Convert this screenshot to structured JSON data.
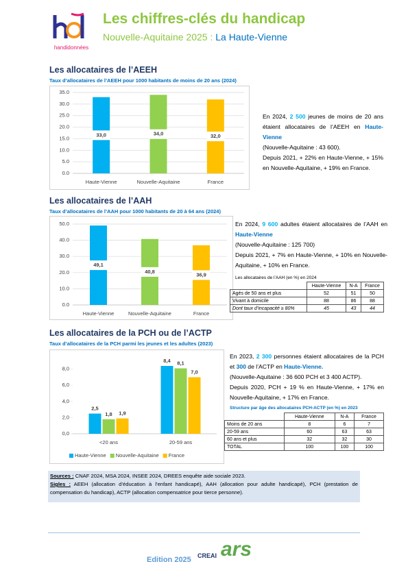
{
  "header": {
    "logo_text": "handidonnées",
    "title": "Les chiffres-clés du handicap",
    "subtitle": "Nouvelle-Aquitaine 2025 : ",
    "subtitle_place": "La Haute-Vienne"
  },
  "sections": [
    {
      "title": "Les allocataires de l’AEEH",
      "subtitle": "Taux d’allocataires de l’AEEH pour 1000 habitants de moins de 20 ans (2024)",
      "text": [
        [
          "En 2024, ",
          "2 500",
          " jeunes de moins de 20 ans étaient allocataires de l’AEEH en ",
          "Haute-Vienne"
        ],
        [
          "(Nouvelle-Aquitaine : 43 600)."
        ],
        [
          "Depuis 2021, + 22% en Haute-Vienne, + 15% en Nouvelle-Aquitaine, + 19% en France."
        ]
      ]
    },
    {
      "title": "Les allocataires de l’AAH",
      "subtitle": "Taux d’allocataires de l’AAH pour 1000 habitants de 20 à 64 ans (2024)",
      "text": [
        [
          "En 2024, ",
          "9 600",
          " adultes étaient allocataires de l’AAH en ",
          "Haute-Vienne"
        ],
        [
          "(Nouvelle-Aquitaine : 125 700)"
        ],
        [
          "Depuis 2021, + 7% en Haute-Vienne, + 10% en Nouvelle-Aquitaine, + 10% en France."
        ]
      ],
      "table": {
        "title": "Les allocataires de l’AAH (en %) en 2024",
        "columns": [
          "Haute-Vienne",
          "N-A",
          "France"
        ],
        "rows": [
          [
            "Agés de 50 ans et plus",
            52,
            51,
            50
          ],
          [
            "Vivant à domicile",
            88,
            86,
            88
          ],
          [
            "Dont taux d’incapacité ≥ 80%",
            45,
            43,
            44
          ]
        ]
      }
    },
    {
      "title": "Les allocataires de la PCH ou de l’ACTP",
      "subtitle": "Taux d’allocataires de la PCH parmi les jeunes et les adultes (2023)",
      "text": [
        [
          "En 2023, ",
          "2 300",
          " personnes étaient allocataires de la PCH et ",
          "300",
          " de l’ACTP en ",
          "Haute-Vienne."
        ],
        [
          "(Nouvelle-Aquitaine : 36 600 PCH et 3 400 ACTP)."
        ],
        [
          "Depuis 2020, PCH + 19 % en Haute-Vienne, + 17% en Nouvelle-Aquitaine, + 17% en France."
        ]
      ],
      "table": {
        "title": "Structure par âge des allocataires PCH-ACTP (en %) en 2023",
        "columns": [
          "Haute-Vienne",
          "N-A",
          "France"
        ],
        "rows": [
          [
            "Moins de 20 ans",
            8,
            6,
            7
          ],
          [
            "20-59 ans",
            60,
            63,
            63
          ],
          [
            "60 ans et plus",
            32,
            32,
            30
          ],
          [
            "TOTAL",
            100,
            100,
            100
          ]
        ]
      }
    }
  ],
  "chart_data": [
    {
      "type": "bar",
      "categories": [
        "Haute-Vienne",
        "Nouvelle-Aquitaine",
        "France"
      ],
      "values": [
        33.0,
        34.0,
        32.0
      ],
      "value_labels": [
        "33,0",
        "34,0",
        "32,0"
      ],
      "colors": [
        "#00b0f0",
        "#92d050",
        "#ffc000"
      ],
      "ylim": [
        0,
        35
      ],
      "yticks": [
        {
          "value": 0,
          "label": "0.0"
        },
        {
          "value": 5,
          "label": "5.0"
        },
        {
          "value": 10,
          "label": "10.0"
        },
        {
          "value": 15,
          "label": "15.0"
        },
        {
          "value": 20,
          "label": "20.0"
        },
        {
          "value": 25,
          "label": "25.0"
        },
        {
          "value": 30,
          "label": "30.0"
        },
        {
          "value": 35,
          "label": "35.0"
        }
      ],
      "grid": true
    },
    {
      "type": "bar",
      "categories": [
        "Haute-Vienne",
        "Nouvelle-Aquitaine",
        "France"
      ],
      "values": [
        49.1,
        40.8,
        36.9
      ],
      "value_labels": [
        "49,1",
        "40,8",
        "36,9"
      ],
      "colors": [
        "#00b0f0",
        "#92d050",
        "#ffc000"
      ],
      "ylim": [
        0,
        50
      ],
      "yticks": [
        {
          "value": 0,
          "label": "0.0"
        },
        {
          "value": 10,
          "label": "10.0"
        },
        {
          "value": 20,
          "label": "20.0"
        },
        {
          "value": 30,
          "label": "30.0"
        },
        {
          "value": 40,
          "label": "40.0"
        },
        {
          "value": 50,
          "label": "50.0"
        }
      ],
      "grid": true
    },
    {
      "type": "bar",
      "categories": [
        "<20 ans",
        "20-59 ans"
      ],
      "ylim": [
        0,
        9.5
      ],
      "yticks": [
        {
          "value": 0,
          "label": "0,0"
        },
        {
          "value": 2,
          "label": "2,0"
        },
        {
          "value": 4,
          "label": "4,0"
        },
        {
          "value": 6,
          "label": "6,0"
        },
        {
          "value": 8,
          "label": "8,0"
        }
      ],
      "grid": false,
      "series": [
        {
          "name": "Haute-Vienne",
          "color": "#00b0f0",
          "values": [
            2.5,
            8.4
          ],
          "value_labels": [
            "2,5",
            "8,4"
          ]
        },
        {
          "name": "Nouvelle-Aquitaine",
          "color": "#92d050",
          "values": [
            1.8,
            8.1
          ],
          "value_labels": [
            "1,8",
            "8,1"
          ]
        },
        {
          "name": "France",
          "color": "#ffc000",
          "values": [
            1.9,
            7.0
          ],
          "value_labels": [
            "1,9",
            "7,0"
          ]
        }
      ],
      "legend": "bottom"
    }
  ],
  "sources": {
    "label": "Sources :",
    "text": " CNAF 2024, MSA 2024, INSEE 2024, DREES enquête aide sociale 2023."
  },
  "sigles": {
    "label": "Sigles :",
    "text": " AEEH (allocation d’éducation à l’enfant handicapé), AAH (allocation pour adulte handicapé), PCH (prestation de compensation du handicap), ACTP (allocation compensatrice pour tierce personne)."
  },
  "footer": {
    "edition": "Edition 2025",
    "logo_creai": "CREAI",
    "logo_ars": "ars"
  }
}
